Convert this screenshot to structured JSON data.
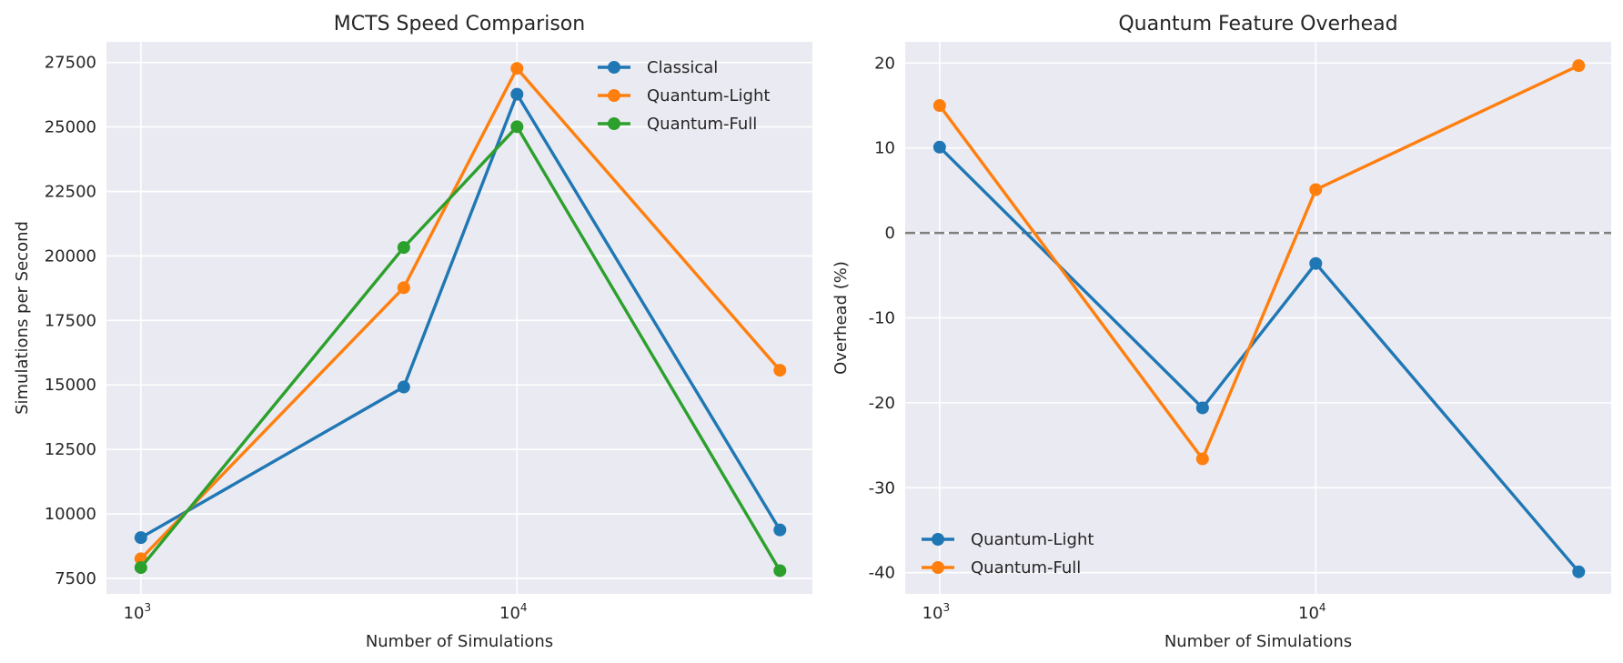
{
  "chart_data": [
    {
      "type": "line",
      "title": "MCTS Speed Comparison",
      "xlabel": "Number of Simulations",
      "ylabel": "Simulations per Second",
      "xscale": "log",
      "x": [
        1000,
        5000,
        10000,
        50000
      ],
      "xticks": [
        {
          "value": 1000,
          "base": "10",
          "exp": "3"
        },
        {
          "value": 10000,
          "base": "10",
          "exp": "4"
        }
      ],
      "yticks": [
        7500,
        10000,
        12500,
        15000,
        17500,
        20000,
        22500,
        25000,
        27500
      ],
      "ylim": [
        6900,
        28300
      ],
      "grid": true,
      "legend_position": "top-right",
      "series": [
        {
          "name": "Classical",
          "color": "#1f77b4",
          "values": [
            9080,
            14920,
            26270,
            9380
          ]
        },
        {
          "name": "Quantum-Light",
          "color": "#ff7f0e",
          "values": [
            8260,
            18770,
            27270,
            15570
          ]
        },
        {
          "name": "Quantum-Full",
          "color": "#2ca02c",
          "values": [
            7920,
            20330,
            25010,
            7800
          ]
        }
      ]
    },
    {
      "type": "line",
      "title": "Quantum Feature Overhead",
      "xlabel": "Number of Simulations",
      "ylabel": "Overhead (%)",
      "xscale": "log",
      "x": [
        1000,
        5000,
        10000,
        50000
      ],
      "xticks": [
        {
          "value": 1000,
          "base": "10",
          "exp": "3"
        },
        {
          "value": 10000,
          "base": "10",
          "exp": "4"
        }
      ],
      "yticks": [
        -40,
        -30,
        -20,
        -10,
        0,
        10,
        20
      ],
      "ylim": [
        -42.5,
        22.5
      ],
      "grid": true,
      "reference_line": {
        "y": 0,
        "color": "#7f7f7f",
        "style": "dashed"
      },
      "legend_position": "bottom-left",
      "series": [
        {
          "name": "Quantum-Light",
          "color": "#1f77b4",
          "values": [
            10.1,
            -20.6,
            -3.6,
            -39.9
          ]
        },
        {
          "name": "Quantum-Full",
          "color": "#ff7f0e",
          "values": [
            15.0,
            -26.6,
            5.1,
            19.7
          ]
        }
      ]
    }
  ]
}
